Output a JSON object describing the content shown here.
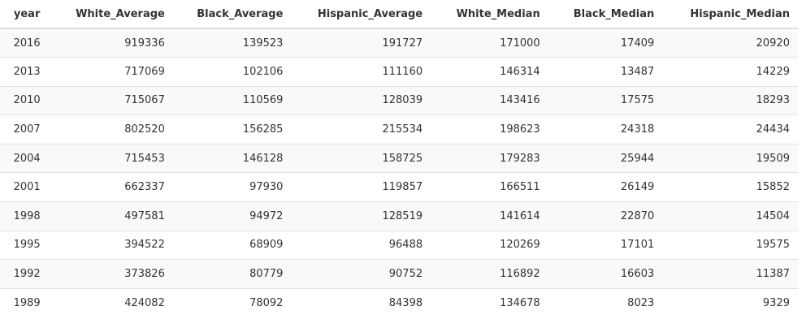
{
  "table": {
    "headers": [
      "year",
      "White_Average",
      "Black_Average",
      "Hispanic_Average",
      "White_Median",
      "Black_Median",
      "Hispanic_Median"
    ],
    "rows": [
      [
        "2016",
        "919336",
        "139523",
        "191727",
        "171000",
        "17409",
        "20920"
      ],
      [
        "2013",
        "717069",
        "102106",
        "111160",
        "146314",
        "13487",
        "14229"
      ],
      [
        "2010",
        "715067",
        "110569",
        "128039",
        "143416",
        "17575",
        "18293"
      ],
      [
        "2007",
        "802520",
        "156285",
        "215534",
        "198623",
        "24318",
        "24434"
      ],
      [
        "2004",
        "715453",
        "146128",
        "158725",
        "179283",
        "25944",
        "19509"
      ],
      [
        "2001",
        "662337",
        "97930",
        "119857",
        "166511",
        "26149",
        "15852"
      ],
      [
        "1998",
        "497581",
        "94972",
        "128519",
        "141614",
        "22870",
        "14504"
      ],
      [
        "1995",
        "394522",
        "68909",
        "96488",
        "120269",
        "17101",
        "19575"
      ],
      [
        "1992",
        "373826",
        "80779",
        "90752",
        "116892",
        "16603",
        "11387"
      ],
      [
        "1989",
        "424082",
        "78092",
        "84398",
        "134678",
        "8023",
        "9329"
      ]
    ]
  }
}
